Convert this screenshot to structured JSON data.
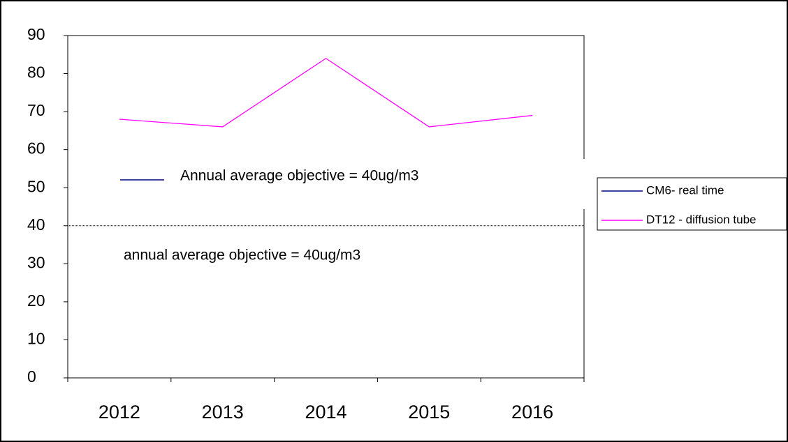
{
  "chart_data": {
    "type": "line",
    "categories": [
      "2012",
      "2013",
      "2014",
      "2015",
      "2016"
    ],
    "series": [
      {
        "name": "CM6- real time",
        "color": "#000080",
        "values": [
          null,
          null,
          null,
          null,
          null
        ]
      },
      {
        "name": "DT12 - diffusion tube",
        "color": "#ff00ff",
        "values": [
          68,
          66,
          84,
          66,
          69
        ]
      }
    ],
    "ylim": [
      0,
      90
    ],
    "yticks": [
      0,
      10,
      20,
      30,
      40,
      50,
      60,
      70,
      80,
      90
    ],
    "reference_line": {
      "value": 40,
      "style": "dotted"
    },
    "annotations": [
      "Annual average objective = 40ug/m3",
      "annual average objective = 40ug/m3"
    ],
    "legend": "right"
  }
}
